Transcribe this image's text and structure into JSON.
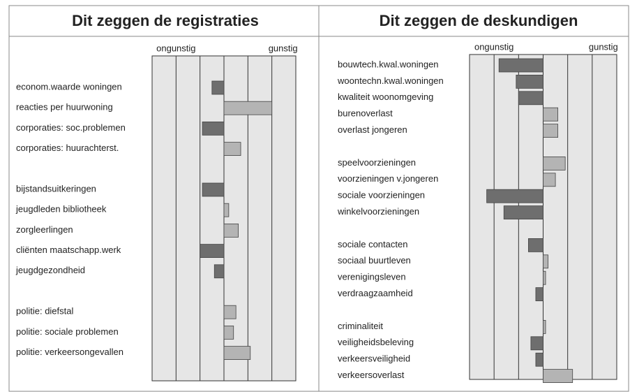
{
  "chart_data": [
    {
      "type": "bar",
      "orientation": "horizontal",
      "title": "Dit zeggen de registraties",
      "xlabel_left": "ongunstig",
      "xlabel_right": "gunstig",
      "categories": [
        "econom.waarde woningen",
        "reacties per huurwoning",
        "corporaties: soc.problemen",
        "corporaties: huurachterst.",
        null,
        "bijstandsuitkeringen",
        "jeugdleden bibliotheek",
        "zorgleerlingen",
        "cliënten maatschapp.werk",
        "jeugdgezondheid",
        null,
        "politie: diefstal",
        "politie: sociale problemen",
        "politie: verkeersongevallen"
      ],
      "values": [
        -0.5,
        2.0,
        -0.9,
        0.7,
        null,
        -0.9,
        0.2,
        0.6,
        -1.0,
        -0.4,
        null,
        0.5,
        0.4,
        1.1
      ],
      "xlim": [
        -3,
        3
      ],
      "xticks": [
        -3,
        -2,
        -1,
        0,
        1,
        2,
        3
      ],
      "grid": true,
      "negative_color": "#6e6e6e",
      "positive_color": "#b4b4b4",
      "background": "#e6e6e6"
    },
    {
      "type": "bar",
      "orientation": "horizontal",
      "title": "Dit zeggen de deskundigen",
      "xlabel_left": "ongunstig",
      "xlabel_right": "gunstig",
      "categories": [
        "bouwtech.kwal.woningen",
        "woontechn.kwal.woningen",
        "kwaliteit woonomgeving",
        "burenoverlast",
        "overlast jongeren",
        null,
        "speelvoorzieningen",
        "voorzieningen v.jongeren",
        "sociale voorzieningen",
        "winkelvoorzieningen",
        null,
        "sociale contacten",
        "sociaal buurtleven",
        "verenigingsleven",
        "verdraagzaamheid",
        null,
        "criminaliteit",
        "veiligheidsbeleving",
        "verkeersveiligheid",
        "verkeersoverlast"
      ],
      "values": [
        -1.8,
        -1.1,
        -1.0,
        0.6,
        0.6,
        null,
        0.9,
        0.5,
        -2.3,
        -1.6,
        null,
        -0.6,
        0.2,
        0.1,
        -0.3,
        null,
        0.1,
        -0.5,
        -0.3,
        1.2
      ],
      "xlim": [
        -3,
        3
      ],
      "xticks": [
        -3,
        -2,
        -1,
        0,
        1,
        2,
        3
      ],
      "grid": true,
      "negative_color": "#6e6e6e",
      "positive_color": "#b4b4b4",
      "background": "#e6e6e6"
    }
  ]
}
